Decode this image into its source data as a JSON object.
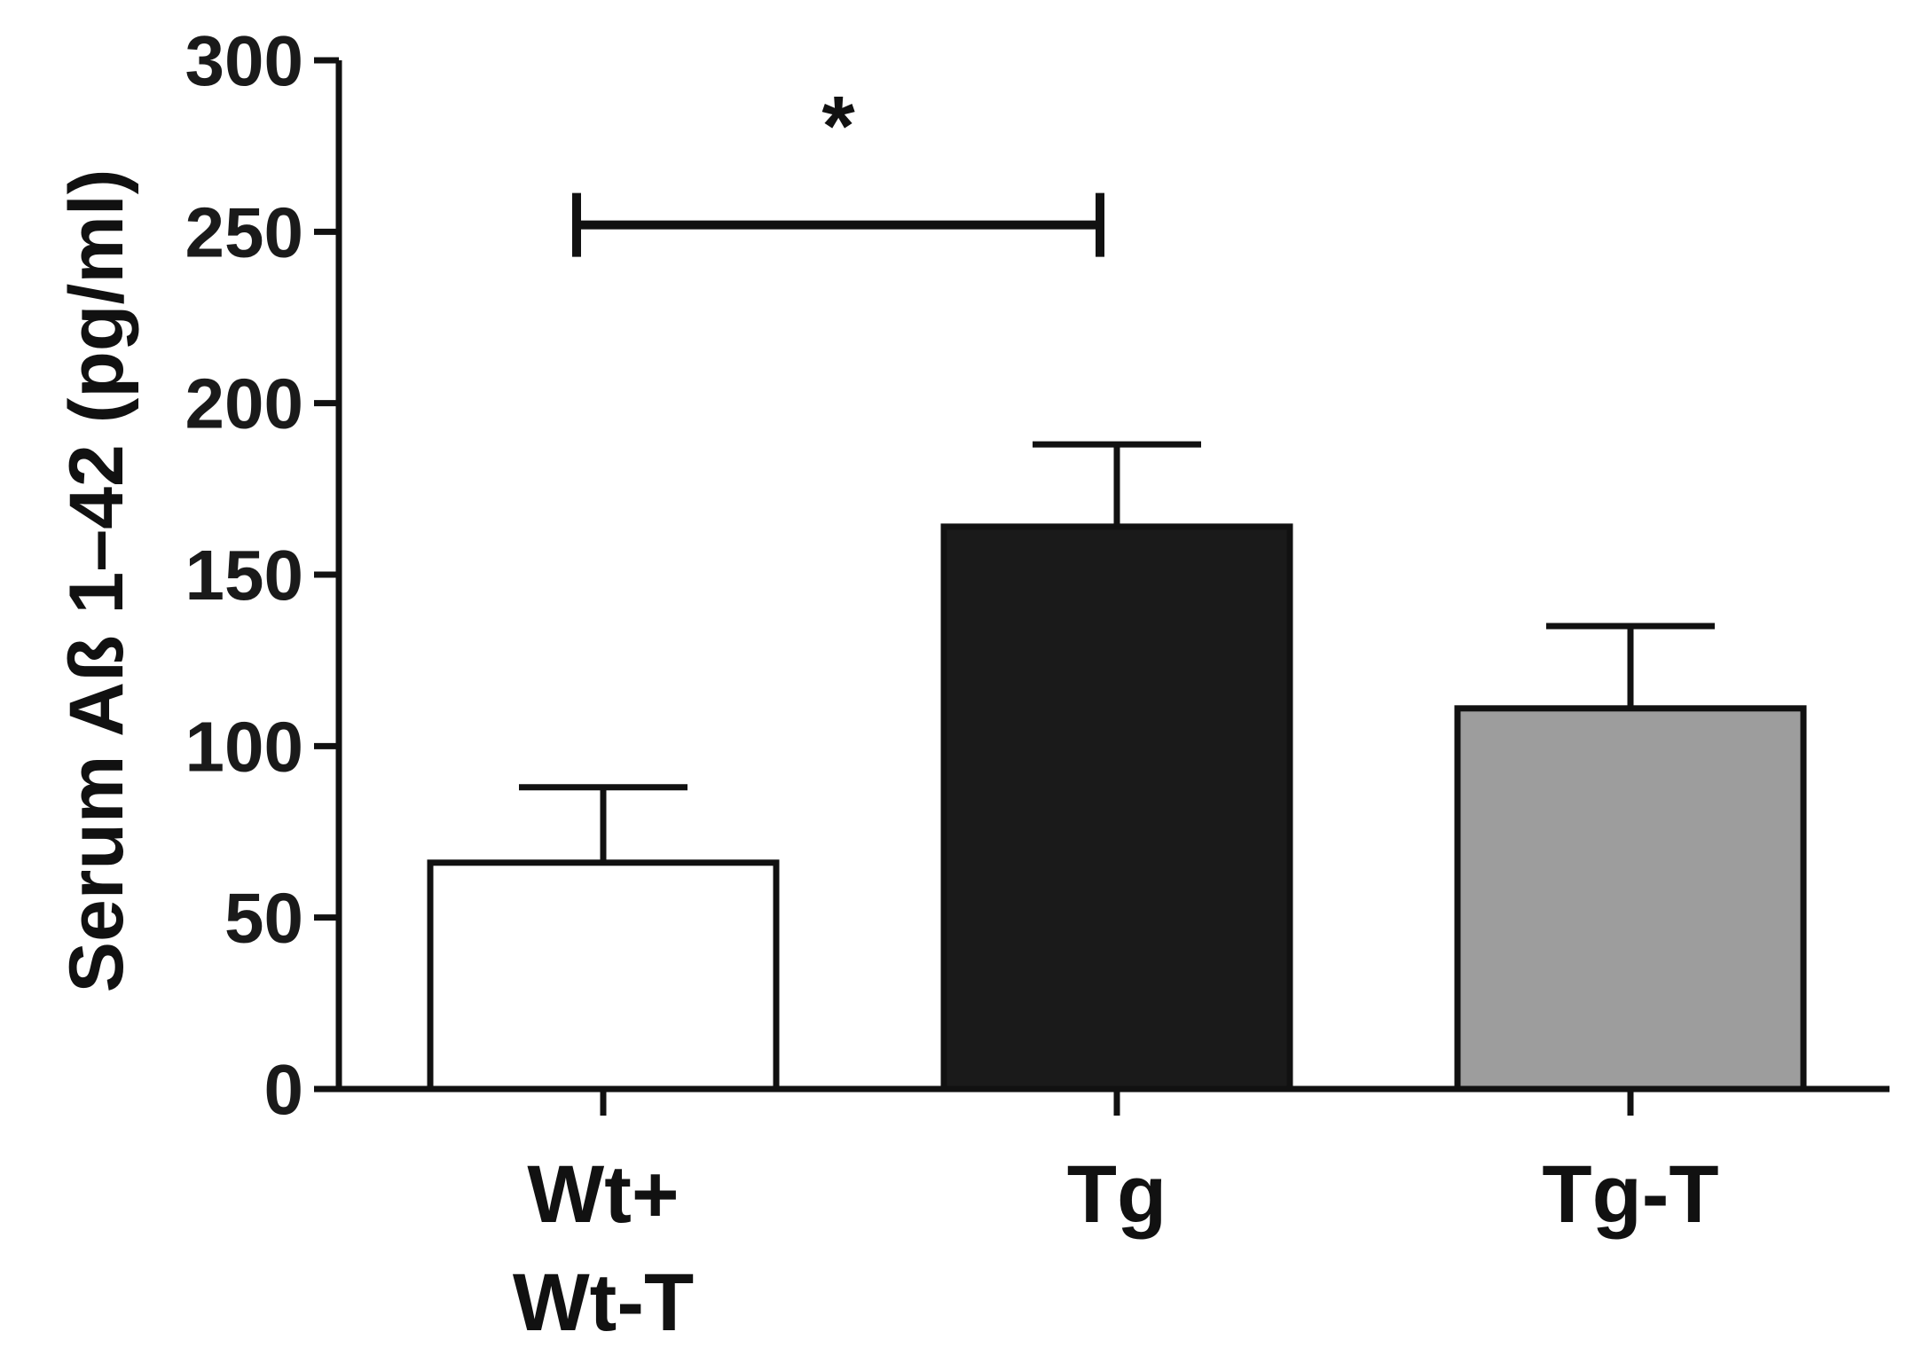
{
  "chart_data": {
    "type": "bar",
    "title": "",
    "xlabel": "",
    "ylabel": "Serum Aß 1–42 (pg/ml)",
    "ylim": [
      0,
      300
    ],
    "yticks": [
      0,
      50,
      100,
      150,
      200,
      250,
      300
    ],
    "grid": false,
    "categories": [
      {
        "lines": [
          "Wt+",
          "Wt-T"
        ]
      },
      {
        "lines": [
          "Tg"
        ]
      },
      {
        "lines": [
          "Tg-T"
        ]
      }
    ],
    "values": [
      66,
      164,
      111
    ],
    "errors": [
      22,
      24,
      24
    ],
    "bar_colors": [
      "#ffffff",
      "#1a1a1a",
      "#9d9d9d"
    ],
    "edge_color": "#111111",
    "significance": [
      {
        "from": 0,
        "to": 1,
        "y": 252,
        "label": "*"
      }
    ]
  }
}
